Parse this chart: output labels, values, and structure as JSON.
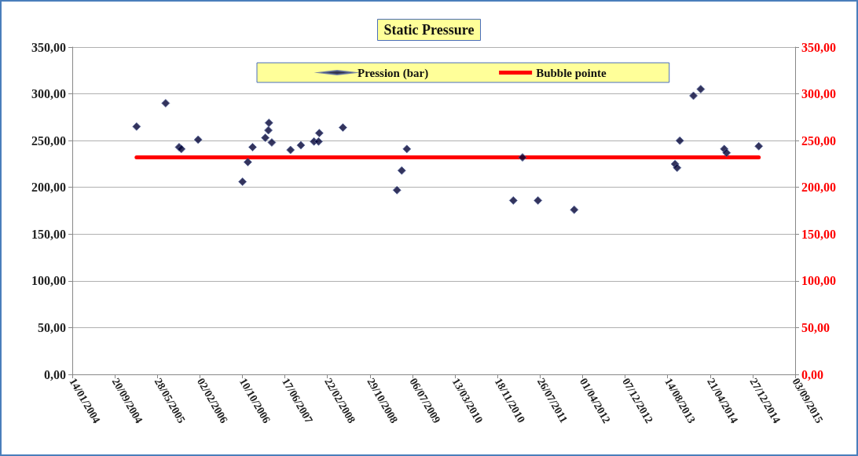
{
  "chart_data": {
    "type": "scatter",
    "title": "Static Pressure",
    "xlim": [
      "2004-01-14",
      "2015-09-03"
    ],
    "xticks": [
      {
        "value": "2004-01-14",
        "label": "14/01/2004"
      },
      {
        "value": "2004-09-20",
        "label": "20/09/2004"
      },
      {
        "value": "2005-05-28",
        "label": "28/05/2005"
      },
      {
        "value": "2006-02-02",
        "label": "02/02/2006"
      },
      {
        "value": "2006-10-10",
        "label": "10/10/2006"
      },
      {
        "value": "2007-06-17",
        "label": "17/06/2007"
      },
      {
        "value": "2008-02-22",
        "label": "22/02/2008"
      },
      {
        "value": "2008-10-29",
        "label": "29/10/2008"
      },
      {
        "value": "2009-07-06",
        "label": "06/07/2009"
      },
      {
        "value": "2010-03-13",
        "label": "13/03/2010"
      },
      {
        "value": "2010-11-18",
        "label": "18/11/2010"
      },
      {
        "value": "2011-07-26",
        "label": "26/07/2011"
      },
      {
        "value": "2012-04-01",
        "label": "01/04/2012"
      },
      {
        "value": "2012-12-07",
        "label": "07/12/2012"
      },
      {
        "value": "2013-08-14",
        "label": "14/08/2013"
      },
      {
        "value": "2014-04-21",
        "label": "21/04/2014"
      },
      {
        "value": "2014-12-27",
        "label": "27/12/2014"
      },
      {
        "value": "2015-09-03",
        "label": "03/09/2015"
      }
    ],
    "ylim": [
      0,
      350
    ],
    "yticks": [
      {
        "value": 0,
        "label": "0,00"
      },
      {
        "value": 50,
        "label": "50,00"
      },
      {
        "value": 100,
        "label": "100,00"
      },
      {
        "value": 150,
        "label": "150,00"
      },
      {
        "value": 200,
        "label": "200,00"
      },
      {
        "value": 250,
        "label": "250,00"
      },
      {
        "value": 300,
        "label": "300,00"
      },
      {
        "value": 350,
        "label": "350,00"
      }
    ],
    "y2lim": [
      0,
      350
    ],
    "y2ticks": [
      {
        "value": 0,
        "label": "0,00"
      },
      {
        "value": 50,
        "label": "50,00"
      },
      {
        "value": 100,
        "label": "100,00"
      },
      {
        "value": 150,
        "label": "150,00"
      },
      {
        "value": 200,
        "label": "200,00"
      },
      {
        "value": 250,
        "label": "250,00"
      },
      {
        "value": 300,
        "label": "300,00"
      },
      {
        "value": 350,
        "label": "350,00"
      }
    ],
    "grid": "y",
    "legend": "top",
    "marker": "diamond",
    "series": [
      {
        "name": "Pression (bar)",
        "color": "#000033",
        "x": [
          "2005-01-26",
          "2005-07-16",
          "2005-10-03",
          "2005-10-16",
          "2006-01-23",
          "2006-10-11",
          "2006-11-11",
          "2006-12-09",
          "2007-02-22",
          "2007-03-12",
          "2007-03-15",
          "2007-04-01",
          "2007-07-20",
          "2007-09-19",
          "2007-12-05",
          "2008-01-01",
          "2008-01-05",
          "2008-05-23",
          "2009-04-06",
          "2009-05-04",
          "2009-06-03",
          "2011-02-19",
          "2011-04-14",
          "2011-07-14",
          "2012-02-12",
          "2013-09-27",
          "2013-10-09",
          "2013-10-25",
          "2014-01-13",
          "2014-02-25",
          "2014-07-13",
          "2014-07-27",
          "2015-02-01"
        ],
        "values": [
          265,
          290,
          243,
          241,
          251,
          206,
          227,
          243,
          253,
          261,
          269,
          248,
          240,
          245,
          249,
          249,
          258,
          264,
          197,
          218,
          241,
          186,
          232,
          186,
          176,
          225,
          221,
          250,
          298,
          305,
          241,
          237,
          244
        ]
      },
      {
        "name": "Bubble pointe",
        "type": "line",
        "color": "#ff0000",
        "marker": "none",
        "x": [
          "2005-01-26",
          "2015-02-01"
        ],
        "values": [
          232,
          232
        ]
      }
    ]
  }
}
